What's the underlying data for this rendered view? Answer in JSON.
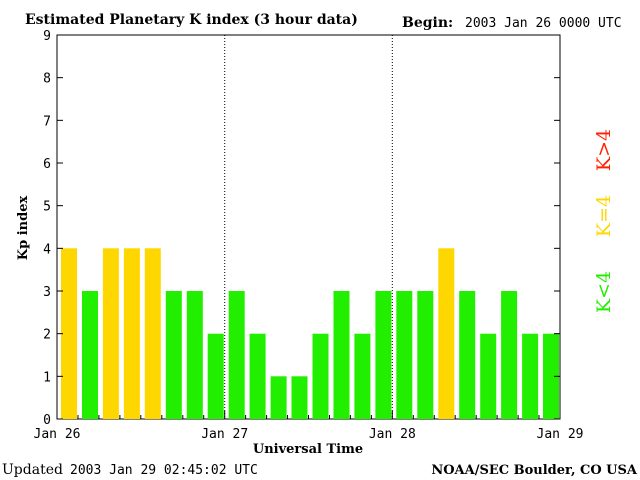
{
  "header": {
    "title": "Estimated Planetary K index (3 hour data)",
    "begin_label": "Begin:",
    "begin_value": "2003 Jan 26 0000 UTC"
  },
  "footer": {
    "updated_label": "Updated",
    "updated_value": "2003 Jan 29 02:45:02 UTC",
    "source": "NOAA/SEC Boulder, CO USA"
  },
  "legend": {
    "items": [
      {
        "label": "K>4",
        "color": "#ff2200"
      },
      {
        "label": "K=4",
        "color": "#ffd700"
      },
      {
        "label": "K<4",
        "color": "#22ee00"
      }
    ]
  },
  "colors": {
    "below_4": "#22ee00",
    "equal_4": "#ffd700",
    "above_4": "#ff2200"
  },
  "chart_data": {
    "type": "bar",
    "title": "Estimated Planetary K index (3 hour data)",
    "xlabel": "Universal Time",
    "ylabel": "Kp index",
    "ylim": [
      0,
      9
    ],
    "yticks": [
      0,
      1,
      2,
      3,
      4,
      5,
      6,
      7,
      8,
      9
    ],
    "xtick_labels": [
      "Jan 26",
      "Jan 27",
      "Jan 28",
      "Jan 29"
    ],
    "day_dividers": [
      "Jan 27",
      "Jan 28"
    ],
    "bins_per_day": 8,
    "grid": false,
    "legend_position": "right",
    "values": [
      4,
      3,
      4,
      4,
      4,
      3,
      3,
      2,
      3,
      2,
      1,
      1,
      2,
      3,
      2,
      3,
      3,
      3,
      4,
      3,
      2,
      3,
      2,
      2
    ]
  }
}
